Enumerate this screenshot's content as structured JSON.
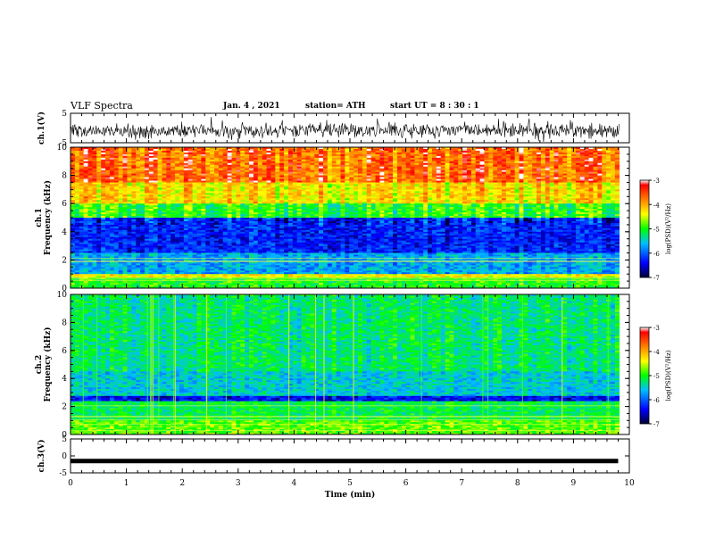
{
  "header": {
    "title": "VLF Spectra",
    "date": "Jan. 4 , 2021",
    "station": "station= ATH",
    "start": "start UT =  8 : 30 : 1"
  },
  "chart_data": [
    {
      "type": "line",
      "ylabel": "ch.1(V)",
      "ylim": [
        -5,
        5
      ],
      "yticks": [
        "5",
        "-5"
      ],
      "xlim": [
        0,
        10
      ],
      "description_series": "broadband waveform, roughly centered near 0 V with amplitude around ±2 V"
    },
    {
      "type": "heatmap",
      "ylabel": "ch.1\nFrequency (kHz)",
      "ylabel_line1": "ch.1",
      "ylabel_line2": "Frequency (kHz)",
      "ylim": [
        0,
        10
      ],
      "yticks": [
        "0",
        "2",
        "4",
        "6",
        "8",
        "10"
      ],
      "xlim": [
        0,
        10
      ],
      "colorbar": {
        "label": "log(PSD)(V²/Hz)",
        "min": -7,
        "max": -3,
        "ticks": [
          "-3",
          "-4",
          "-5",
          "-6",
          "-7"
        ]
      },
      "bands_khz_log_psd": [
        {
          "range": [
            0,
            0.8
          ],
          "value": -5.0
        },
        {
          "range": [
            0.8,
            1.0
          ],
          "value": -4.3
        },
        {
          "range": [
            1.0,
            2.5
          ],
          "value": -5.8
        },
        {
          "range": [
            2.5,
            5.0
          ],
          "value": -6.4
        },
        {
          "range": [
            5.0,
            6.0
          ],
          "value": -5.0
        },
        {
          "range": [
            6.0,
            7.5
          ],
          "value": -4.2
        },
        {
          "range": [
            7.5,
            10.0
          ],
          "value": -3.6
        }
      ]
    },
    {
      "type": "heatmap",
      "ylabel": "ch.2\nFrequency (kHz)",
      "ylabel_line1": "ch.2",
      "ylabel_line2": "Frequency (kHz)",
      "ylim": [
        0,
        10
      ],
      "yticks": [
        "0",
        "2",
        "4",
        "6",
        "8",
        "10"
      ],
      "xlim": [
        0,
        10
      ],
      "colorbar": {
        "label": "log(PSD)(V²/Hz)",
        "min": -7,
        "max": -3,
        "ticks": [
          "-3",
          "-4",
          "-5",
          "-6",
          "-7"
        ]
      },
      "bands_khz_log_psd": [
        {
          "range": [
            0,
            1.0
          ],
          "value": -4.8
        },
        {
          "range": [
            1.0,
            2.4
          ],
          "value": -5.2
        },
        {
          "range": [
            2.4,
            2.8
          ],
          "value": -6.5
        },
        {
          "range": [
            2.8,
            4.5
          ],
          "value": -5.6
        },
        {
          "range": [
            4.5,
            10.0
          ],
          "value": -5.3
        }
      ]
    },
    {
      "type": "line",
      "ylabel": "ch.3(V)",
      "ylim": [
        -5,
        5
      ],
      "yticks": [
        "5",
        "0",
        "-5"
      ],
      "xlim": [
        0,
        10
      ],
      "xlabel": "Time (min)",
      "xticks": [
        "0",
        "1",
        "2",
        "3",
        "4",
        "5",
        "6",
        "7",
        "8",
        "9",
        "10"
      ],
      "series": [
        {
          "x": [
            0,
            9.8
          ],
          "y": [
            -1.5,
            -1.5
          ]
        }
      ]
    }
  ]
}
